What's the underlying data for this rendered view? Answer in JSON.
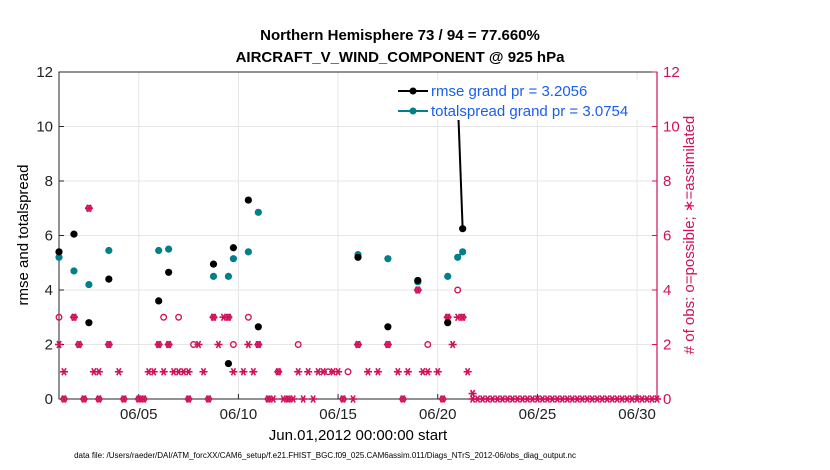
{
  "chart_data": {
    "type": "scatter",
    "title": "Northern Hemisphere 73 / 94 = 77.660%",
    "subtitle": "AIRCRAFT_V_WIND_COMPONENT @ 925 hPa",
    "xlabel": "Jun.01,2012 00:00:00 start",
    "ylabel": "rmse and totalspread",
    "y2label": "# of obs: o=possible; ∗=assimilated",
    "xlim": [
      1,
      31
    ],
    "ylim": [
      0,
      12
    ],
    "y2lim": [
      0,
      12
    ],
    "xticks": [
      5,
      10,
      15,
      20,
      25,
      30
    ],
    "xtick_labels": [
      "06/05",
      "06/10",
      "06/15",
      "06/20",
      "06/25",
      "06/30"
    ],
    "yticks": [
      0,
      2,
      4,
      6,
      8,
      10,
      12
    ],
    "y2ticks": [
      0,
      2,
      4,
      6,
      8,
      10,
      12
    ],
    "grid": true,
    "legend_position": "top-right",
    "footer": "data file: /Users/raeder/DAI/ATM_forcXX/CAM6_setup/f.e21.FHIST_BGC.f09_025.CAM6assim.011/Diags_NTrS_2012-06/obs_diag_output.nc",
    "colors": {
      "rmse": "#000000",
      "spread": "#00808b",
      "obs": "#d0105a",
      "legend_text": "#1a5ef0"
    },
    "series": [
      {
        "name": "rmse grand pr = 3.2056",
        "axis": "left",
        "points": [
          [
            1.0,
            5.4
          ],
          [
            1.75,
            6.05
          ],
          [
            2.5,
            2.8
          ],
          [
            3.5,
            4.4
          ],
          [
            6.0,
            3.6
          ],
          [
            6.5,
            4.65
          ],
          [
            8.75,
            4.95
          ],
          [
            9.5,
            1.3
          ],
          [
            9.75,
            5.55
          ],
          [
            10.5,
            7.3
          ],
          [
            11.0,
            2.65
          ],
          [
            16.0,
            5.2
          ],
          [
            17.5,
            2.65
          ],
          [
            19.0,
            4.35
          ],
          [
            20.5,
            2.8
          ],
          [
            21.0,
            11.1
          ],
          [
            21.25,
            6.25
          ]
        ],
        "line_segments": [
          [
            21.0,
            21.25
          ]
        ]
      },
      {
        "name": "totalspread grand pr = 3.0754",
        "axis": "left",
        "points": [
          [
            1.0,
            5.2
          ],
          [
            1.75,
            4.7
          ],
          [
            2.5,
            4.2
          ],
          [
            3.5,
            5.45
          ],
          [
            6.0,
            5.45
          ],
          [
            6.5,
            5.5
          ],
          [
            8.75,
            4.5
          ],
          [
            9.5,
            4.5
          ],
          [
            9.75,
            5.15
          ],
          [
            10.5,
            5.4
          ],
          [
            11.0,
            6.85
          ],
          [
            16.0,
            5.3
          ],
          [
            17.5,
            5.15
          ],
          [
            19.0,
            4.3
          ],
          [
            20.5,
            4.5
          ],
          [
            21.0,
            5.2
          ],
          [
            21.25,
            5.4
          ]
        ],
        "line_segments": [
          [
            21.0,
            21.25
          ]
        ]
      },
      {
        "name": "possible",
        "axis": "right",
        "marker": "o",
        "points": [
          [
            1.0,
            3
          ],
          [
            1.75,
            3
          ],
          [
            2.0,
            2
          ],
          [
            2.5,
            7
          ],
          [
            3.5,
            2
          ],
          [
            6.0,
            2
          ],
          [
            6.25,
            3
          ],
          [
            6.5,
            2
          ],
          [
            7.0,
            3
          ],
          [
            7.75,
            2
          ],
          [
            8.75,
            3
          ],
          [
            9.5,
            3
          ],
          [
            9.75,
            2
          ],
          [
            10.5,
            3
          ],
          [
            11.0,
            2
          ],
          [
            12.0,
            1
          ],
          [
            13.0,
            2
          ],
          [
            14.5,
            1
          ],
          [
            15.5,
            1
          ],
          [
            16.0,
            2
          ],
          [
            17.5,
            2
          ],
          [
            19.0,
            4
          ],
          [
            19.5,
            2
          ],
          [
            20.5,
            3
          ],
          [
            21.0,
            4
          ],
          [
            21.25,
            3
          ]
        ]
      },
      {
        "name": "assimilated",
        "axis": "right",
        "marker": "*",
        "points": [
          [
            1.0,
            2
          ],
          [
            1.25,
            1
          ],
          [
            1.75,
            3
          ],
          [
            2.0,
            2
          ],
          [
            2.5,
            7
          ],
          [
            2.75,
            1
          ],
          [
            3.0,
            1
          ],
          [
            3.5,
            2
          ],
          [
            4.0,
            1
          ],
          [
            5.5,
            1
          ],
          [
            5.75,
            1
          ],
          [
            6.0,
            2
          ],
          [
            6.25,
            1
          ],
          [
            6.5,
            2
          ],
          [
            6.75,
            1
          ],
          [
            7.0,
            1
          ],
          [
            7.25,
            1
          ],
          [
            7.5,
            1
          ],
          [
            8.0,
            2
          ],
          [
            8.25,
            1
          ],
          [
            8.75,
            3
          ],
          [
            9.0,
            2
          ],
          [
            9.25,
            3
          ],
          [
            9.5,
            3
          ],
          [
            9.75,
            1
          ],
          [
            10.25,
            1
          ],
          [
            10.5,
            2
          ],
          [
            10.75,
            1
          ],
          [
            11.0,
            2
          ],
          [
            12.0,
            1
          ],
          [
            13.0,
            1
          ],
          [
            13.5,
            1
          ],
          [
            14.0,
            1
          ],
          [
            14.25,
            1
          ],
          [
            14.75,
            1
          ],
          [
            15.0,
            1
          ],
          [
            16.0,
            2
          ],
          [
            16.5,
            1
          ],
          [
            17.0,
            1
          ],
          [
            17.5,
            2
          ],
          [
            18.0,
            1
          ],
          [
            18.5,
            1
          ],
          [
            19.0,
            4
          ],
          [
            19.25,
            1
          ],
          [
            19.5,
            1
          ],
          [
            20.0,
            1
          ],
          [
            20.5,
            3
          ],
          [
            20.75,
            2
          ],
          [
            21.0,
            3
          ],
          [
            21.25,
            3
          ],
          [
            21.5,
            1
          ],
          [
            21.75,
            0.2
          ]
        ]
      },
      {
        "name": "possible-zero",
        "axis": "right",
        "marker": "o",
        "points": [
          [
            1.25,
            0
          ],
          [
            2.25,
            0
          ],
          [
            3.0,
            0
          ],
          [
            4.25,
            0
          ],
          [
            5.0,
            0
          ],
          [
            5.25,
            0
          ],
          [
            7.5,
            0
          ],
          [
            8.5,
            0
          ],
          [
            11.5,
            0
          ],
          [
            12.5,
            0
          ],
          [
            15.25,
            0
          ],
          [
            18.25,
            0
          ],
          [
            20.25,
            0
          ]
        ]
      },
      {
        "name": "assimilated-zero",
        "axis": "right",
        "marker": "*",
        "points": [
          [
            1.25,
            0
          ],
          [
            2.25,
            0
          ],
          [
            3.0,
            0
          ],
          [
            4.25,
            0
          ],
          [
            5.0,
            0
          ],
          [
            5.25,
            0
          ],
          [
            7.5,
            0
          ],
          [
            8.5,
            0
          ],
          [
            11.5,
            0
          ],
          [
            11.75,
            0
          ],
          [
            12.25,
            0
          ],
          [
            12.5,
            0
          ],
          [
            12.75,
            0
          ],
          [
            13.25,
            0
          ],
          [
            13.75,
            0
          ],
          [
            15.25,
            0
          ],
          [
            15.75,
            0
          ],
          [
            18.25,
            0
          ],
          [
            20.25,
            0
          ],
          [
            21.75,
            0
          ],
          [
            22.0,
            0
          ],
          [
            22.25,
            0
          ],
          [
            22.5,
            0
          ],
          [
            22.75,
            0
          ],
          [
            23.0,
            0
          ],
          [
            23.25,
            0
          ],
          [
            23.5,
            0
          ],
          [
            23.75,
            0
          ],
          [
            24.0,
            0
          ],
          [
            24.25,
            0
          ],
          [
            24.5,
            0
          ],
          [
            24.75,
            0
          ],
          [
            25.0,
            0
          ],
          [
            25.25,
            0
          ],
          [
            25.5,
            0
          ],
          [
            25.75,
            0
          ],
          [
            26.0,
            0
          ],
          [
            26.25,
            0
          ],
          [
            26.5,
            0
          ],
          [
            26.75,
            0
          ],
          [
            27.0,
            0
          ],
          [
            27.25,
            0
          ],
          [
            27.5,
            0
          ],
          [
            27.75,
            0
          ],
          [
            28.0,
            0
          ],
          [
            28.25,
            0
          ],
          [
            28.5,
            0
          ],
          [
            28.75,
            0
          ],
          [
            29.0,
            0
          ],
          [
            29.25,
            0
          ],
          [
            29.5,
            0
          ],
          [
            29.75,
            0
          ],
          [
            30.0,
            0
          ],
          [
            30.25,
            0
          ],
          [
            30.5,
            0
          ],
          [
            30.75,
            0
          ],
          [
            31.0,
            0
          ]
        ]
      }
    ]
  }
}
